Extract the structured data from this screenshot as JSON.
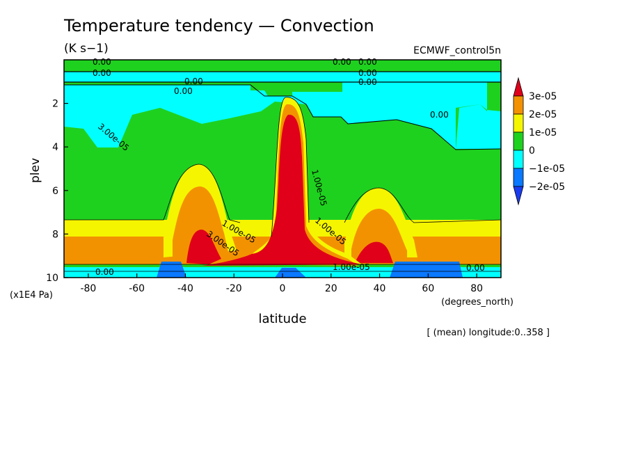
{
  "chart_data": {
    "type": "heatmap",
    "title": "Temperature tendency — Convection",
    "units": "(K s−1)",
    "dataset": "ECMWF_control5n",
    "xlabel": "latitude",
    "xunits": "(degrees_north)",
    "ylabel": "plev",
    "yunits": "(x1E4 Pa)",
    "note": "[ (mean) longitude:0..358 ]",
    "xlim": [
      -90,
      90
    ],
    "ylim": [
      0,
      10
    ],
    "y_inverted": true,
    "xticks": [
      -80,
      -60,
      -40,
      -20,
      0,
      20,
      40,
      60,
      80
    ],
    "yticks": [
      2,
      4,
      6,
      8,
      10
    ],
    "legend": {
      "position": "right",
      "labels": [
        "3e-05",
        "2e-05",
        "1e-05",
        "0",
        "−1e-05",
        "−2e-05"
      ],
      "colors": [
        "#e0001a",
        "#f39200",
        "#f5f500",
        "#1fd11f",
        "#00ffff",
        "#0a78ff",
        "#1a3cf0"
      ]
    },
    "contour_labels": [
      "0.00",
      "0.00",
      "0.00",
      "0.00",
      "0.00",
      "0.00",
      "0.00",
      "0.00",
      "0.00",
      "0.00",
      "0.00",
      "1.00e-05",
      "1.00e-05",
      "1.00e-05",
      "1.00e-05",
      "3.00e-05",
      "3.00e-05",
      "1.00e-05"
    ],
    "series": [
      {
        "region": "tropical_tower",
        "lat": [
          -8,
          16
        ],
        "plev": [
          2.6,
          9.6
        ],
        "level": "3e-05"
      },
      {
        "region": "south_midlat_max",
        "lat": [
          -45,
          -25
        ],
        "plev": [
          7.6,
          9.2
        ],
        "level": "3e-05"
      },
      {
        "region": "north_midlat_max",
        "lat": [
          30,
          45
        ],
        "plev": [
          8.1,
          9.2
        ],
        "level": "3e-05"
      },
      {
        "region": "upper_negative",
        "lat": [
          -90,
          90
        ],
        "plev": [
          0.5,
          4.0
        ],
        "level": "−1e-05"
      },
      {
        "region": "surface_negative_south",
        "lat": [
          -53,
          -40
        ],
        "plev": [
          9.4,
          10
        ],
        "level": "−2e-05"
      },
      {
        "region": "surface_negative_north",
        "lat": [
          47,
          76
        ],
        "plev": [
          9.4,
          10
        ],
        "level": "−2e-05"
      }
    ]
  }
}
